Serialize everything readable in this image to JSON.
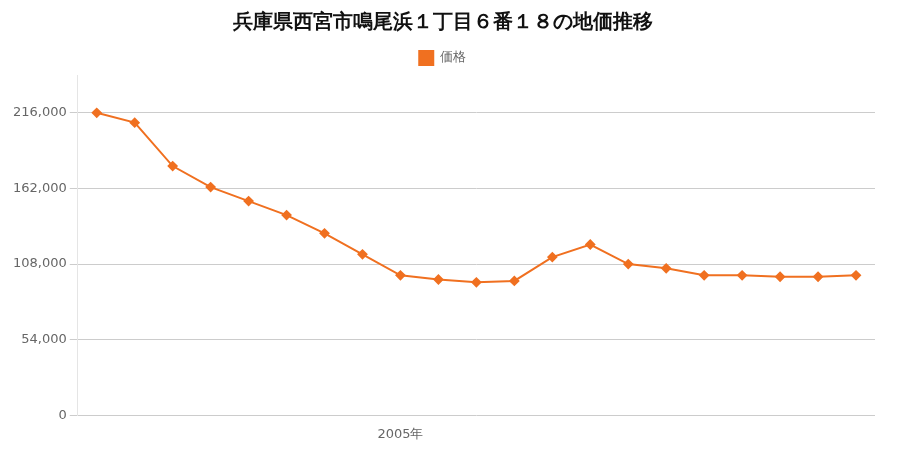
{
  "chart_data": {
    "type": "line",
    "title": "兵庫県西宮市鳴尾浜１丁目６番１８の地価推移",
    "categories": [
      null,
      null,
      null,
      null,
      null,
      null,
      null,
      null,
      "2005年",
      null,
      null,
      null,
      null,
      null,
      null,
      null,
      null,
      null,
      null,
      null,
      null
    ],
    "series": [
      {
        "name": "価格",
        "color": "#f07020",
        "marker": "diamond",
        "values": [
          216000,
          209000,
          178000,
          163000,
          153000,
          143000,
          130000,
          115000,
          100000,
          97000,
          95000,
          96000,
          113000,
          122000,
          108000,
          105000,
          100000,
          100000,
          99000,
          99000,
          100000
        ]
      }
    ],
    "ylim": [
      0,
      243000
    ],
    "yticks": [
      0,
      {
        "value": 54000,
        "label": "54,000"
      },
      {
        "value": 108000,
        "label": "108,000"
      },
      {
        "value": 162000,
        "label": "162,000"
      },
      {
        "value": 216000,
        "label": "216,000"
      }
    ],
    "grid": true,
    "legend": "top"
  }
}
